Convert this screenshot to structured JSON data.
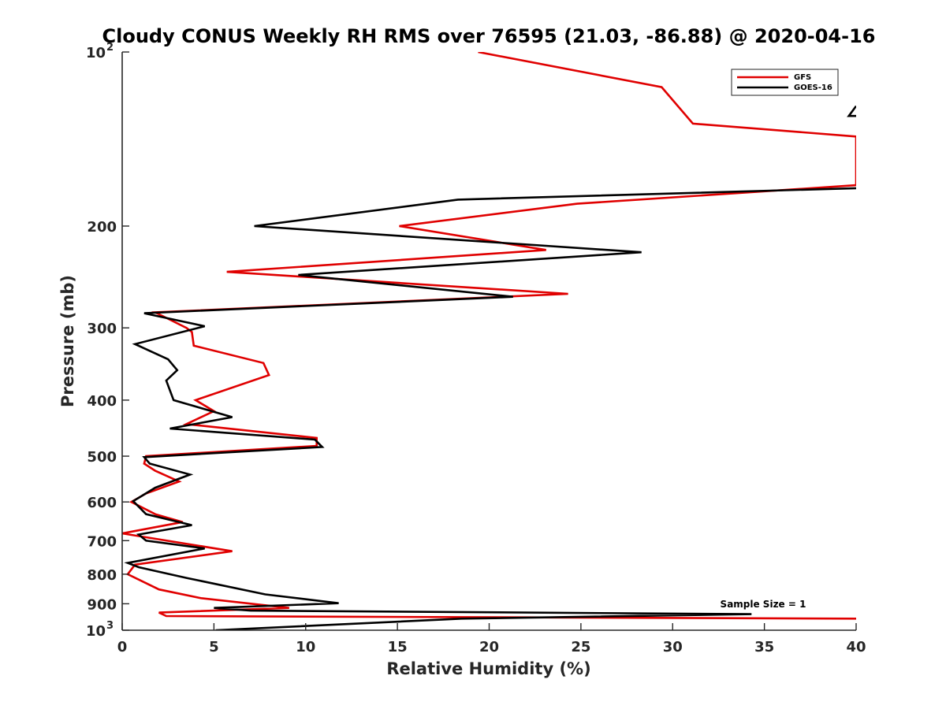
{
  "chart_data": {
    "type": "line",
    "title": "Cloudy CONUS Weekly RH RMS over 76595 (21.03, -86.88) @ 2020-04-16",
    "xlabel": "Relative Humidity (%)",
    "ylabel": "Pressure (mb)",
    "xlim": [
      0,
      40
    ],
    "ylim": [
      100,
      1000
    ],
    "yscale": "log",
    "yreversed": true,
    "xticks": [
      0,
      5,
      10,
      15,
      20,
      25,
      30,
      35,
      40
    ],
    "xtick_labels": [
      "0",
      "5",
      "10",
      "15",
      "20",
      "25",
      "30",
      "35",
      "40"
    ],
    "yticks": [
      {
        "value": 100,
        "label": "10",
        "sup": "2"
      },
      {
        "value": 200,
        "label": "200",
        "sup": ""
      },
      {
        "value": 300,
        "label": "300",
        "sup": ""
      },
      {
        "value": 400,
        "label": "400",
        "sup": ""
      },
      {
        "value": 500,
        "label": "500",
        "sup": ""
      },
      {
        "value": 600,
        "label": "600",
        "sup": ""
      },
      {
        "value": 700,
        "label": "700",
        "sup": ""
      },
      {
        "value": 800,
        "label": "800",
        "sup": ""
      },
      {
        "value": 900,
        "label": "900",
        "sup": ""
      },
      {
        "value": 1000,
        "label": "10",
        "sup": "3"
      }
    ],
    "legend_position": "top-right",
    "annotation": "Sample Size = 1",
    "series": [
      {
        "name": "GFS",
        "color": "#e00000",
        "points": [
          [
            19.4,
            100
          ],
          [
            29.4,
            115
          ],
          [
            31.1,
            133
          ],
          [
            40.0,
            140
          ],
          [
            40.0,
            170
          ],
          [
            24.8,
            183
          ],
          [
            15.1,
            200
          ],
          [
            23.1,
            220
          ],
          [
            5.7,
            240
          ],
          [
            24.3,
            262
          ],
          [
            1.8,
            282
          ],
          [
            3.5,
            300
          ],
          [
            3.8,
            305
          ],
          [
            3.9,
            322
          ],
          [
            7.7,
            345
          ],
          [
            8.0,
            362
          ],
          [
            4.0,
            400
          ],
          [
            5.0,
            418
          ],
          [
            3.5,
            440
          ],
          [
            10.6,
            465
          ],
          [
            10.6,
            480
          ],
          [
            1.3,
            500
          ],
          [
            1.2,
            515
          ],
          [
            1.8,
            530
          ],
          [
            3.1,
            553
          ],
          [
            1.3,
            580
          ],
          [
            0.5,
            600
          ],
          [
            1.8,
            630
          ],
          [
            3.3,
            650
          ],
          [
            0.0,
            680
          ],
          [
            6.0,
            730
          ],
          [
            0.7,
            770
          ],
          [
            0.3,
            800
          ],
          [
            2.0,
            850
          ],
          [
            4.3,
            880
          ],
          [
            9.1,
            915
          ],
          [
            2.0,
            932
          ],
          [
            2.4,
            945
          ],
          [
            40.0,
            955
          ]
        ]
      },
      {
        "name": "GOES-16",
        "color": "#000000",
        "points": [
          [
            40.0,
            172
          ],
          [
            18.3,
            180
          ],
          [
            7.2,
            200
          ],
          [
            28.3,
            222
          ],
          [
            9.6,
            243
          ],
          [
            21.3,
            265
          ],
          [
            1.2,
            283
          ],
          [
            4.5,
            298
          ],
          [
            0.7,
            320
          ],
          [
            2.5,
            340
          ],
          [
            3.0,
            355
          ],
          [
            2.4,
            370
          ],
          [
            2.8,
            400
          ],
          [
            6.0,
            428
          ],
          [
            2.6,
            448
          ],
          [
            10.5,
            468
          ],
          [
            10.9,
            482
          ],
          [
            1.2,
            502
          ],
          [
            1.5,
            515
          ],
          [
            3.7,
            538
          ],
          [
            1.8,
            567
          ],
          [
            0.6,
            598
          ],
          [
            1.3,
            630
          ],
          [
            3.8,
            658
          ],
          [
            0.9,
            683
          ],
          [
            1.3,
            700
          ],
          [
            4.5,
            722
          ],
          [
            0.3,
            765
          ],
          [
            0.9,
            778
          ],
          [
            3.5,
            812
          ],
          [
            7.8,
            867
          ],
          [
            11.8,
            898
          ],
          [
            5.0,
            915
          ],
          [
            7.0,
            925
          ],
          [
            34.3,
            938
          ],
          [
            18.5,
            955
          ],
          [
            5.1,
            1000
          ]
        ]
      },
      {
        "name": "GOES-16 fragment",
        "color": "#000000",
        "legend": false,
        "points": [
          [
            40.0,
            124
          ],
          [
            39.6,
            129
          ],
          [
            40.0,
            129
          ]
        ]
      }
    ]
  }
}
